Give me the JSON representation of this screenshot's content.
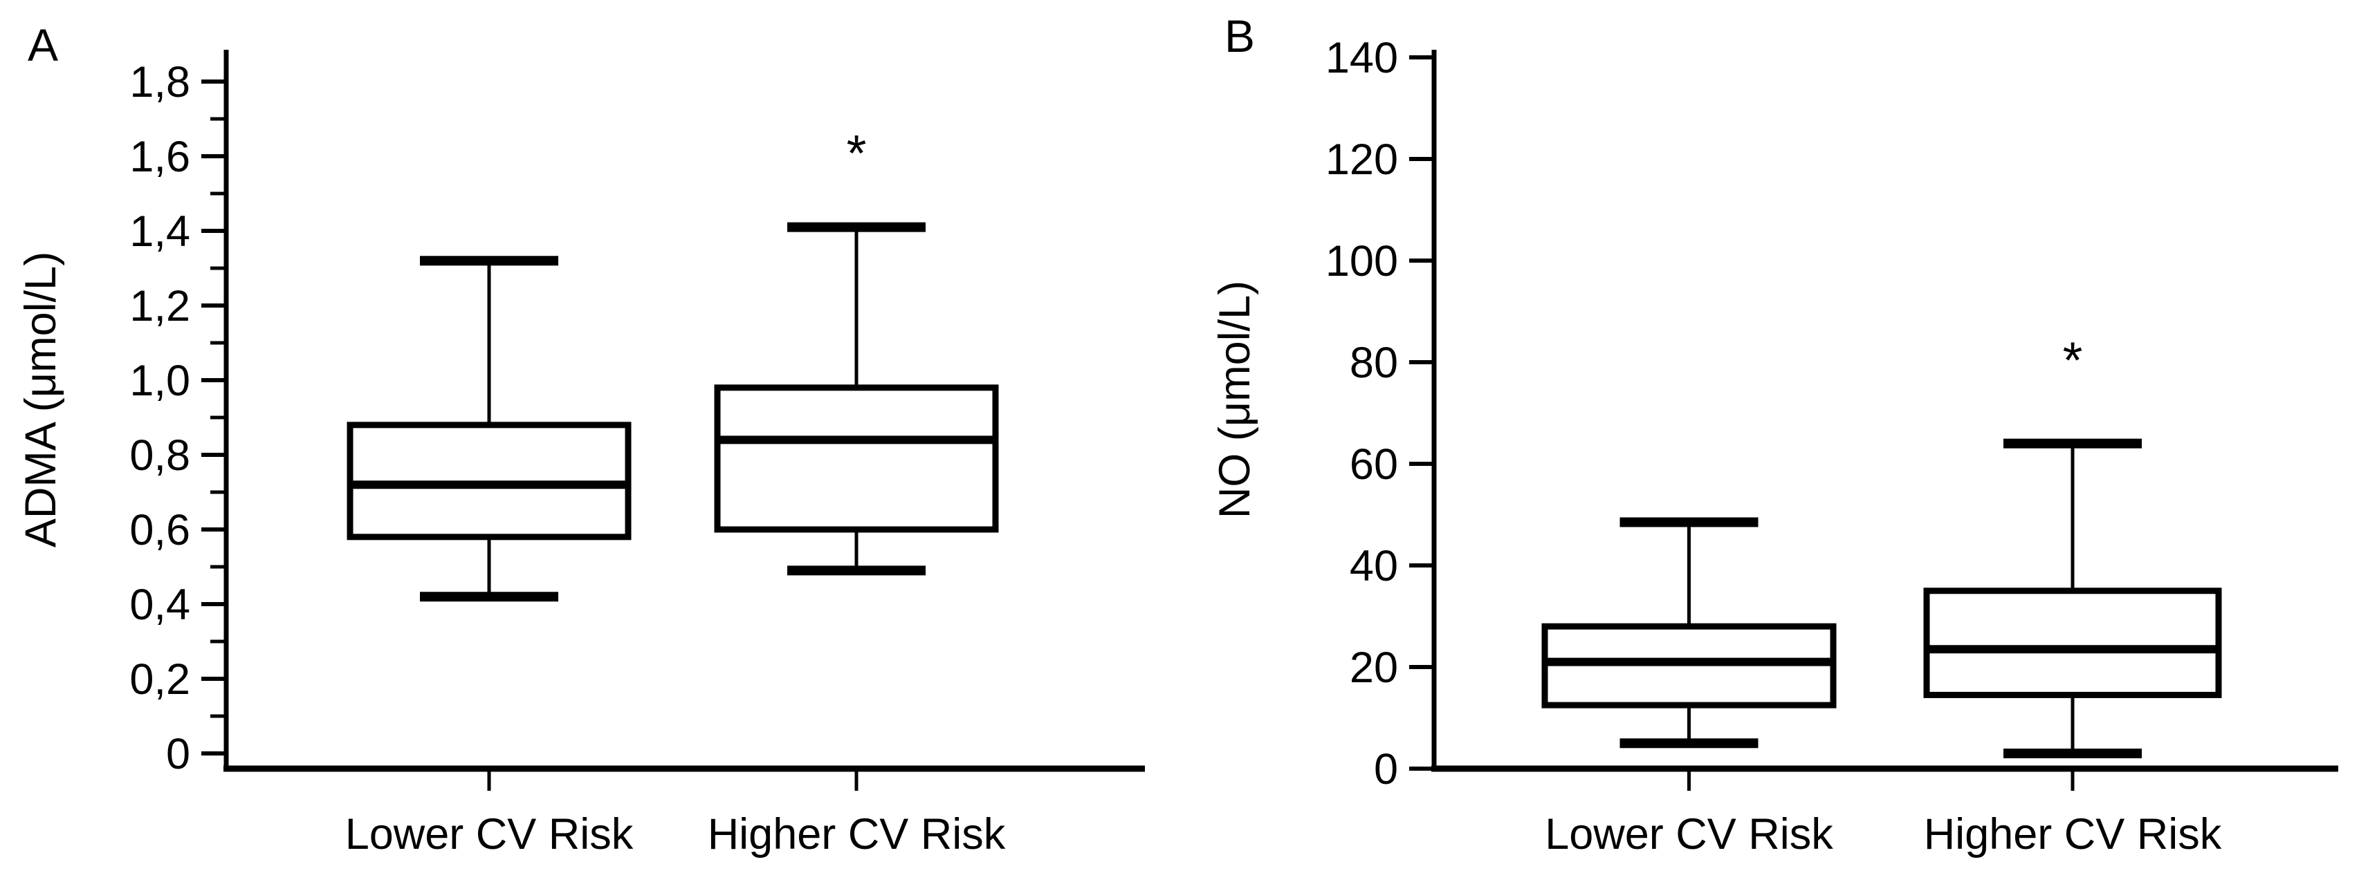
{
  "figure": {
    "background": "#ffffff",
    "ink_color": "#000000"
  },
  "chart_data": [
    {
      "type": "boxplot",
      "panel_label": "A",
      "ylabel": "ADMA (μmol/L)",
      "ylim": [
        0,
        1.8
      ],
      "ytick_values": [
        0,
        0.2,
        0.4,
        0.6,
        0.8,
        1.0,
        1.2,
        1.4,
        1.6,
        1.8
      ],
      "ytick_labels": [
        "0",
        "0,2",
        "0,4",
        "0,6",
        "0,8",
        "1,0",
        "1,2",
        "1,4",
        "1,6",
        "1,8"
      ],
      "minor_tick_step": 0.1,
      "grid": false,
      "categories": [
        "Lower CV Risk",
        "Higher CV Risk"
      ],
      "series": [
        {
          "category": "Lower CV Risk",
          "whisker_low": 0.42,
          "q1": 0.58,
          "median": 0.72,
          "q3": 0.88,
          "whisker_high": 1.32,
          "annotation": ""
        },
        {
          "category": "Higher CV Risk",
          "whisker_low": 0.49,
          "q1": 0.6,
          "median": 0.84,
          "q3": 0.98,
          "whisker_high": 1.41,
          "annotation": "*",
          "annotation_y": 1.63
        }
      ]
    },
    {
      "type": "boxplot",
      "panel_label": "B",
      "ylabel": "NO (μmol/L)",
      "ylim": [
        0,
        140
      ],
      "ytick_values": [
        0,
        20,
        40,
        60,
        80,
        100,
        120,
        140
      ],
      "ytick_labels": [
        "0",
        "20",
        "40",
        "60",
        "80",
        "100",
        "120",
        "140"
      ],
      "minor_tick_step": null,
      "grid": false,
      "categories": [
        "Lower CV Risk",
        "Higher CV Risk"
      ],
      "series": [
        {
          "category": "Lower CV Risk",
          "whisker_low": 5,
          "q1": 12.5,
          "median": 21,
          "q3": 28,
          "whisker_high": 48.5,
          "annotation": ""
        },
        {
          "category": "Higher CV Risk",
          "whisker_low": 3,
          "q1": 14.5,
          "median": 23.5,
          "q3": 35,
          "whisker_high": 64,
          "annotation": "*",
          "annotation_y": 82
        }
      ]
    }
  ]
}
